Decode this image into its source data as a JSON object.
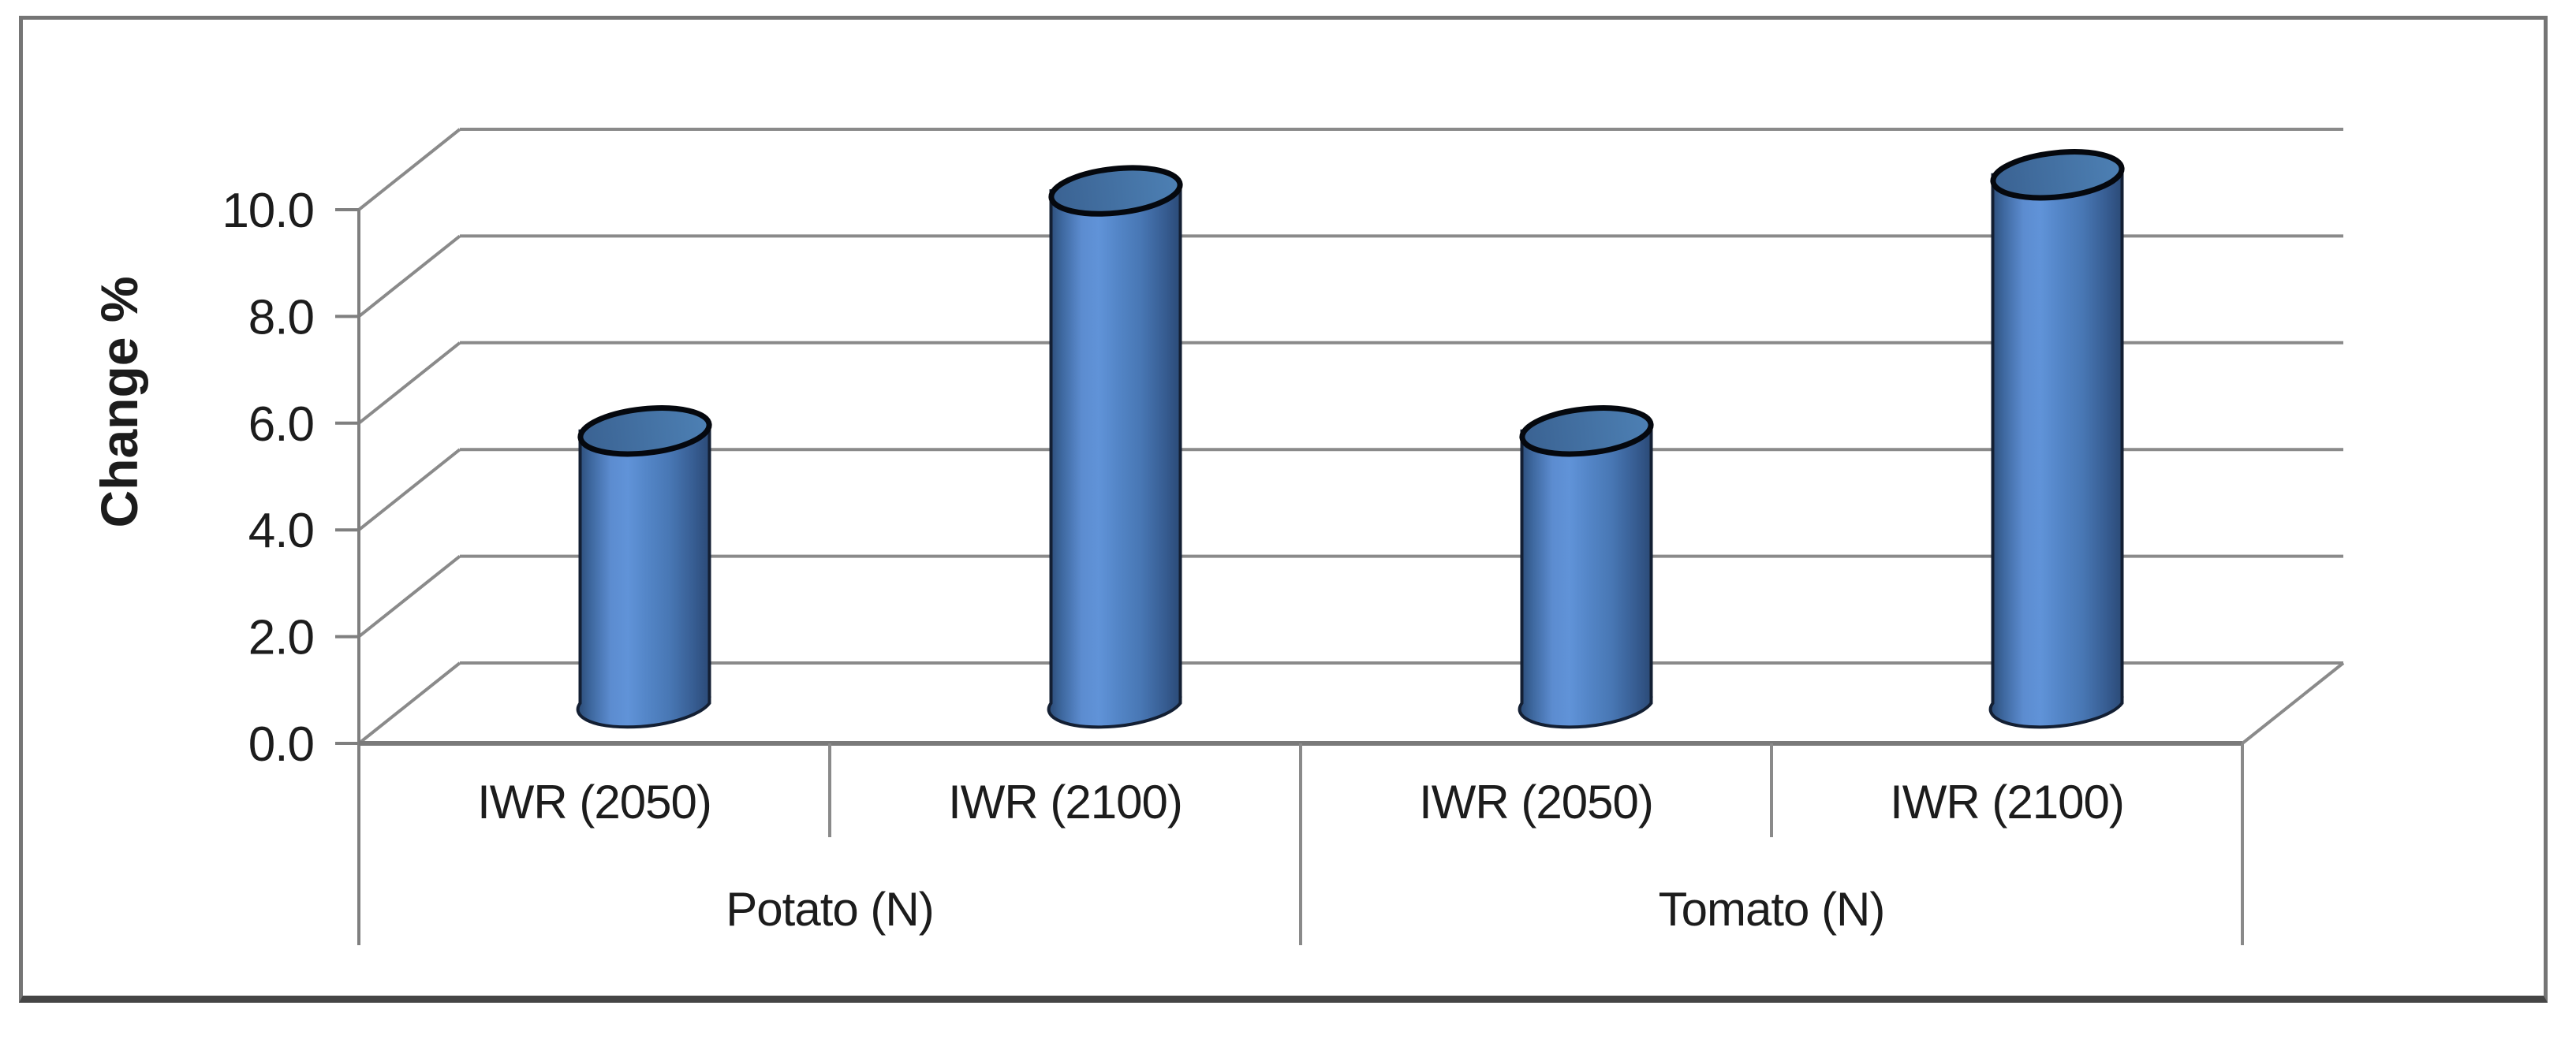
{
  "frame": {
    "background": "#ffffff",
    "border_color": "#757575",
    "border_bottom_color": "#454545"
  },
  "chart_data": {
    "type": "bar",
    "subtype": "3d-cylinder",
    "title": "",
    "xlabel": "",
    "ylabel": "Change %",
    "ylim": [
      0,
      10
    ],
    "ytick_interval": 2,
    "ytick_labels": [
      "0.0",
      "2.0",
      "4.0",
      "6.0",
      "8.0",
      "10.0"
    ],
    "grid": "horizontal-3d-wall",
    "legend_position": "none",
    "bar_color": "#4f81bd",
    "gridline_color": "#8a8a8a",
    "text_color": "#1c1c1c",
    "groups": [
      {
        "label": "Potato (N)",
        "categories": [
          "IWR (2050)",
          "IWR (2100)"
        ],
        "values": [
          5.1,
          9.6
        ]
      },
      {
        "label": "Tomato (N)",
        "categories": [
          "IWR (2050)",
          "IWR (2100)"
        ],
        "values": [
          5.1,
          9.9
        ]
      }
    ]
  }
}
